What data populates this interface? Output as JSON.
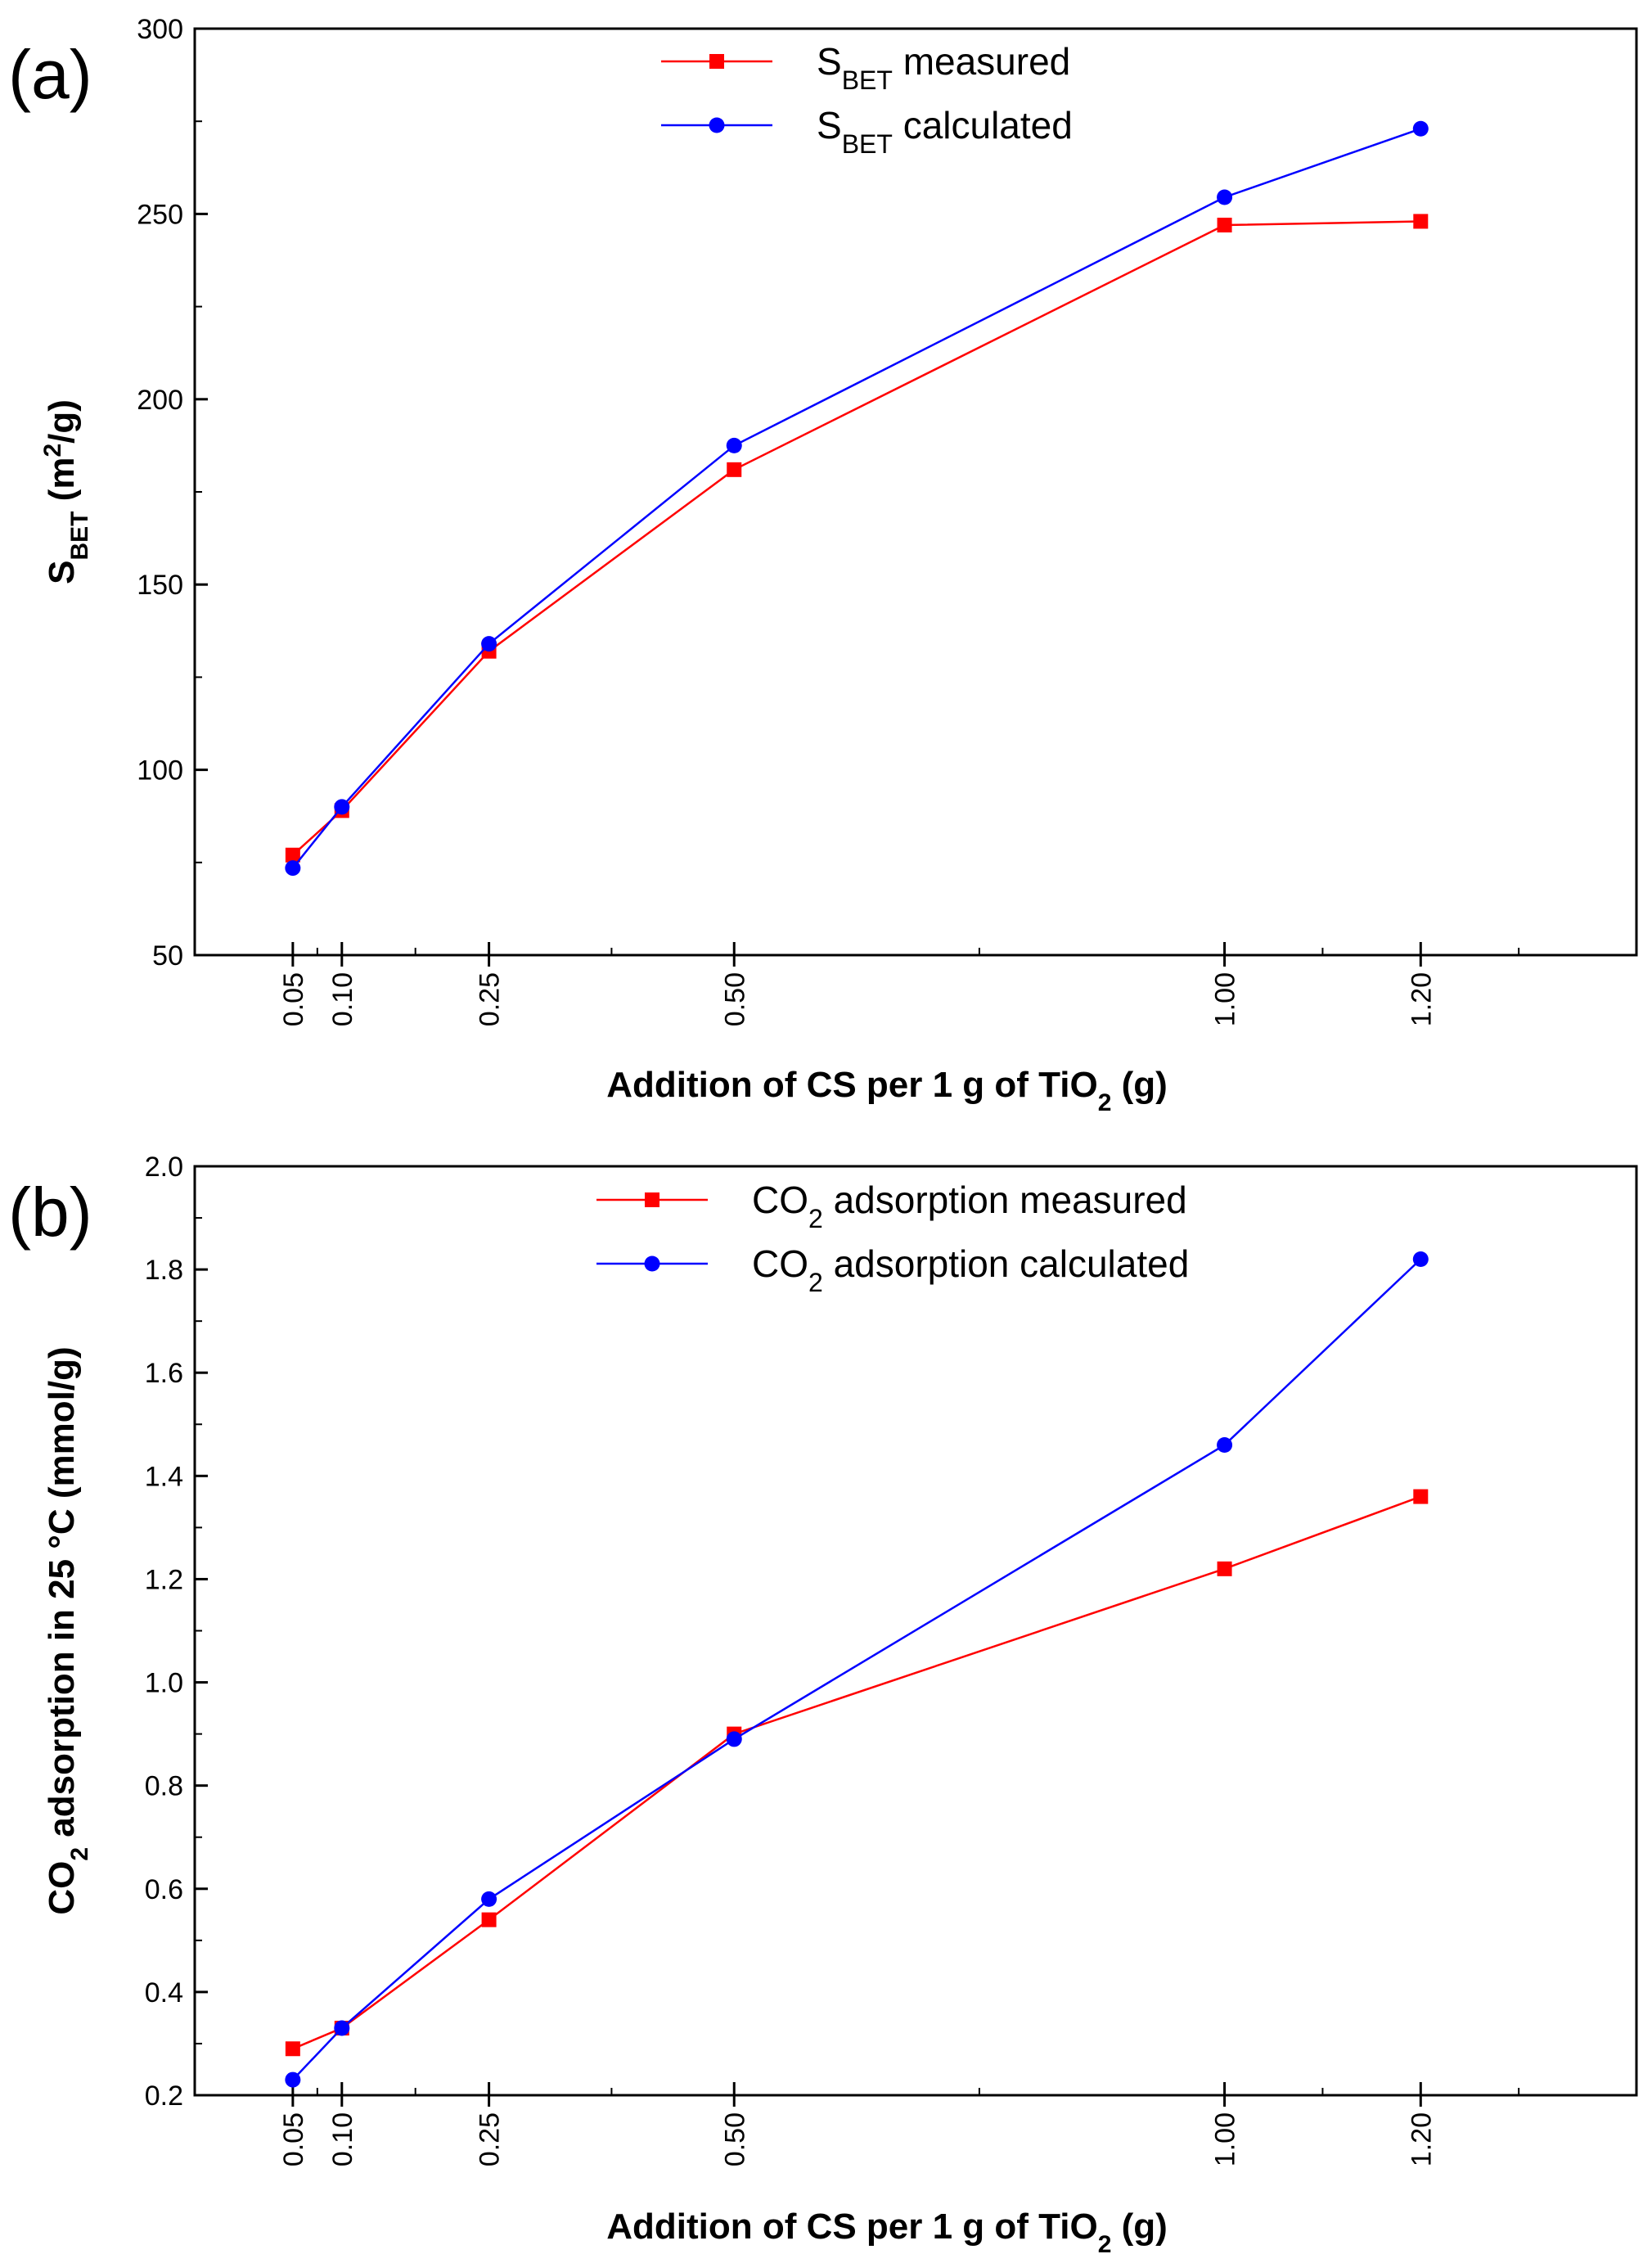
{
  "chart_data": [
    {
      "type": "line",
      "panel_label": "(a)",
      "categories": [
        0.05,
        0.1,
        0.25,
        0.5,
        1.0,
        1.2
      ],
      "xtick_labels": [
        "0.05",
        "0.10",
        "0.25",
        "0.50",
        "1.00",
        "1.20"
      ],
      "xlabel": {
        "main": "Addition of CS per 1 g of TiO",
        "sub": "2",
        "tail": " (g)"
      },
      "ylabel": {
        "main": "S",
        "sub": "BET",
        "tail": " (m",
        "sup": "2",
        "end": "/g)"
      },
      "ylim": [
        50,
        300
      ],
      "yticks": [
        50,
        100,
        150,
        200,
        250,
        300
      ],
      "ytick_labels": [
        "50",
        "100",
        "150",
        "200",
        "250",
        "300"
      ],
      "legend_position": "top-center",
      "series": [
        {
          "name": "S_BET measured",
          "legend": {
            "main": "S",
            "sub": "BET",
            "tail": " measured"
          },
          "marker": "square",
          "color": "#ff0000",
          "values": [
            77,
            89,
            132,
            181,
            247,
            248
          ]
        },
        {
          "name": "S_BET calculated",
          "legend": {
            "main": "S",
            "sub": "BET",
            "tail": " calculated"
          },
          "marker": "circle",
          "color": "#0000ff",
          "values": [
            73.5,
            90,
            134,
            187.5,
            254.5,
            273
          ]
        }
      ]
    },
    {
      "type": "line",
      "panel_label": "(b)",
      "categories": [
        0.05,
        0.1,
        0.25,
        0.5,
        1.0,
        1.2
      ],
      "xtick_labels": [
        "0.05",
        "0.10",
        "0.25",
        "0.50",
        "1.00",
        "1.20"
      ],
      "xlabel": {
        "main": "Addition of CS per 1 g of TiO",
        "sub": "2",
        "tail": " (g)"
      },
      "ylabel": {
        "main": "CO",
        "sub": "2",
        "tail": " adsorption in 25 °C (mmol/g)"
      },
      "ylim": [
        0.2,
        2.0
      ],
      "yticks": [
        0.2,
        0.4,
        0.6,
        0.8,
        1.0,
        1.2,
        1.4,
        1.6,
        1.8,
        2.0
      ],
      "ytick_labels": [
        "0.2",
        "0.4",
        "0.6",
        "0.8",
        "1.0",
        "1.2",
        "1.4",
        "1.6",
        "1.8",
        "2.0"
      ],
      "legend_position": "top-center",
      "series": [
        {
          "name": "CO2 adsorption measured",
          "legend": {
            "main": "CO",
            "sub": "2",
            "tail": " adsorption measured"
          },
          "marker": "square",
          "color": "#ff0000",
          "values": [
            0.29,
            0.33,
            0.54,
            0.9,
            1.22,
            1.36
          ]
        },
        {
          "name": "CO2 adsorption calculated",
          "legend": {
            "main": "CO",
            "sub": "2",
            "tail": " adsorption calculated"
          },
          "marker": "circle",
          "color": "#0000ff",
          "values": [
            0.23,
            0.33,
            0.58,
            0.89,
            1.46,
            1.82
          ]
        }
      ]
    }
  ]
}
